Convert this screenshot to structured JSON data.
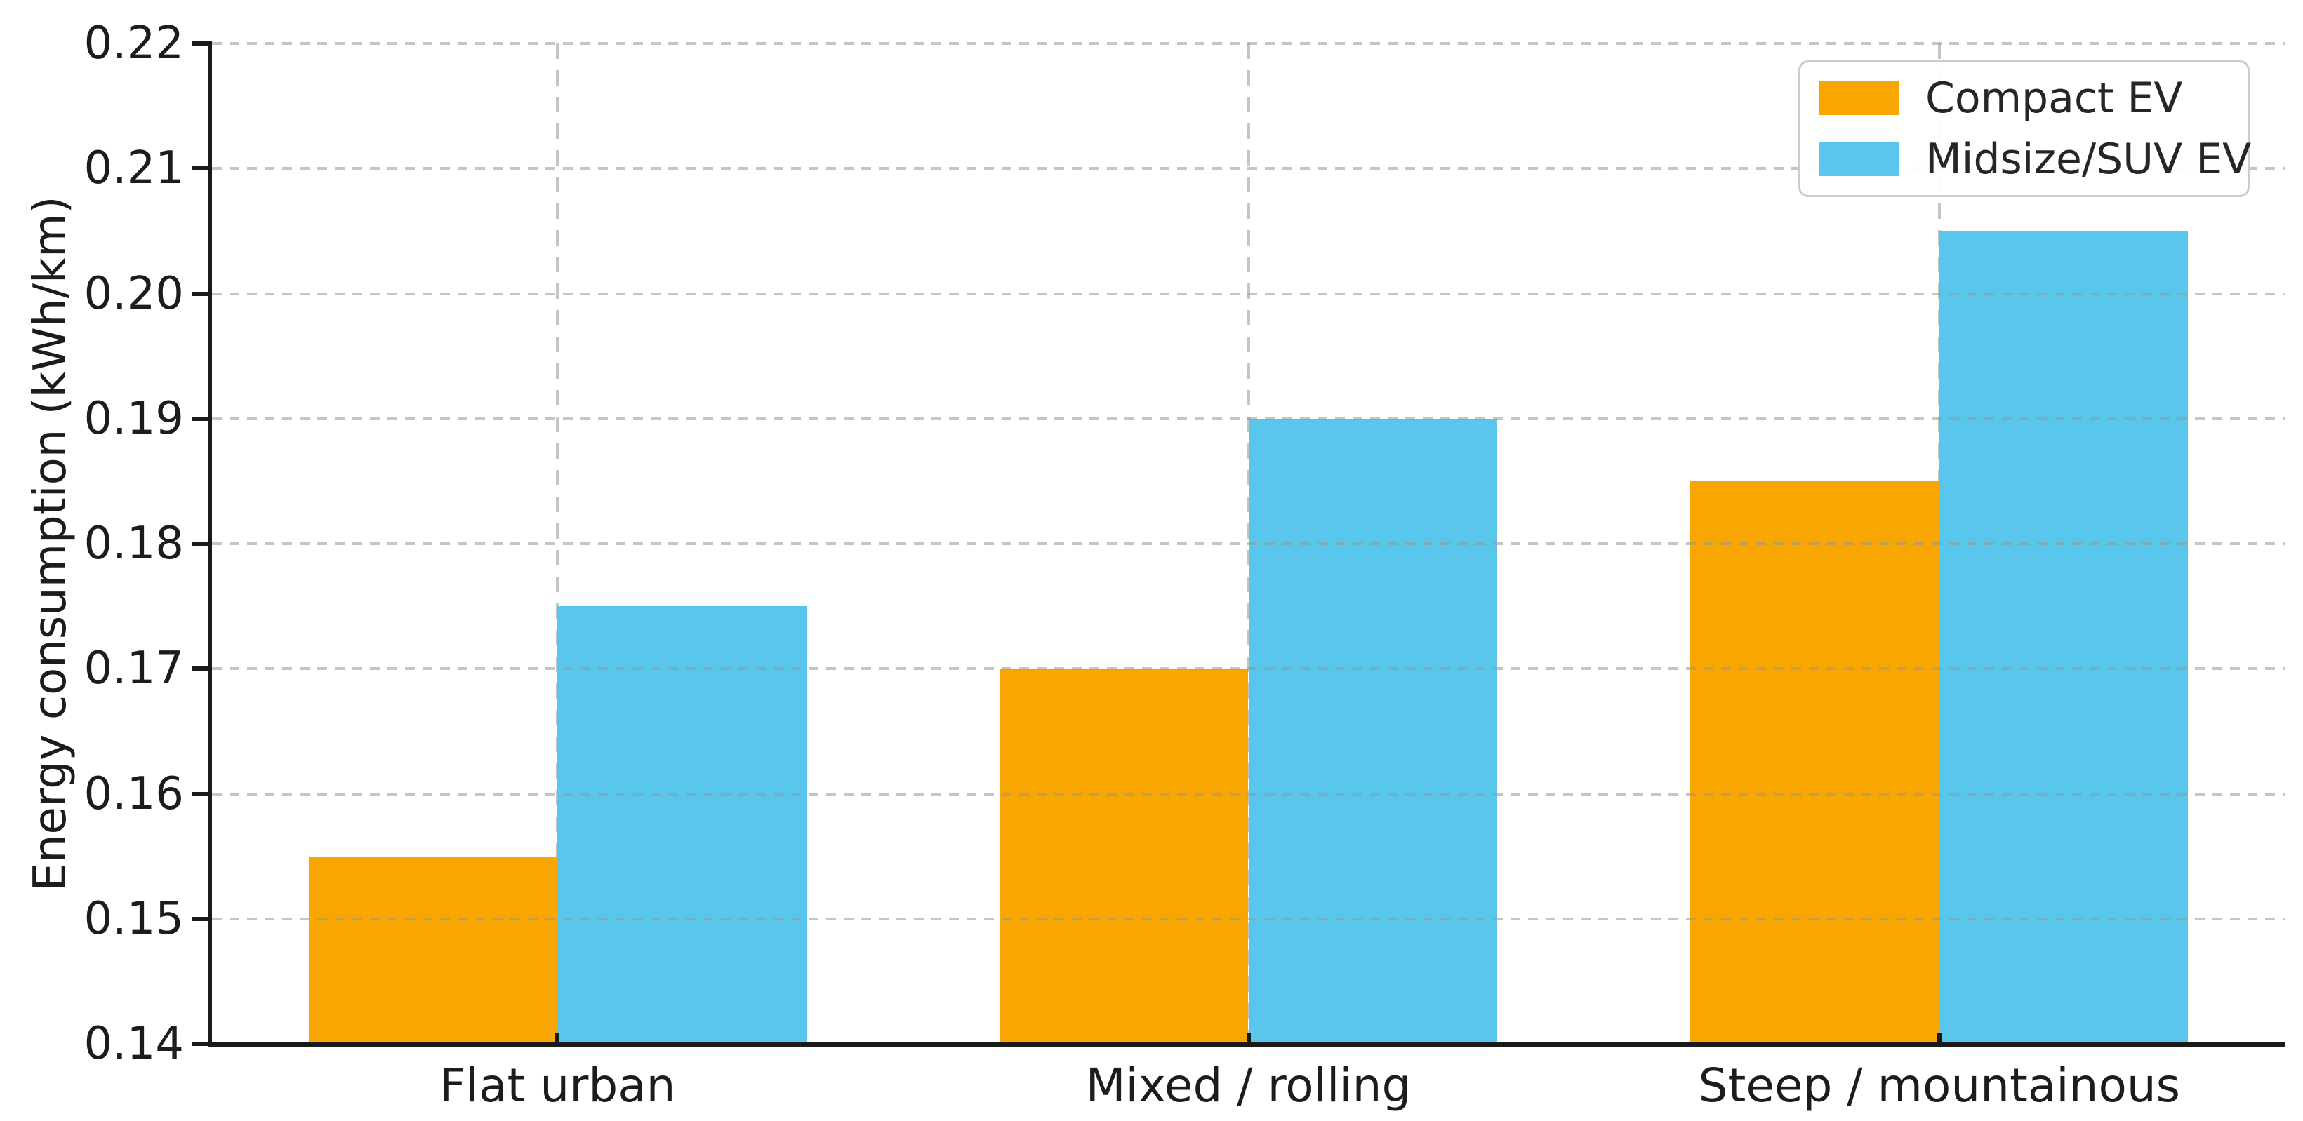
{
  "chart_data": {
    "type": "bar",
    "title": "",
    "xlabel": "",
    "ylabel": "Energy consumption (kWh/km)",
    "categories": [
      "Flat urban",
      "Mixed / rolling",
      "Steep / mountainous"
    ],
    "series": [
      {
        "name": "Compact EV",
        "color": "#FAA602",
        "values": [
          0.155,
          0.17,
          0.185
        ]
      },
      {
        "name": "Midsize/SUV EV",
        "color": "#58C7EB",
        "values": [
          0.175,
          0.19,
          0.205
        ]
      }
    ],
    "ylim": [
      0.14,
      0.22
    ],
    "ytick_labels": [
      "0.14",
      "0.15",
      "0.16",
      "0.17",
      "0.18",
      "0.19",
      "0.20",
      "0.21",
      "0.22"
    ],
    "bar_width_fraction": 0.36,
    "grid": "dashed light-gray horizontal and vertical gridlines, drawn over bars",
    "legend_position": "upper right",
    "colors": {
      "axis": "#1a1a1a",
      "text": "#1c1c1c",
      "grid": "#c8c8c8",
      "legend_border": "#cccccc"
    }
  }
}
